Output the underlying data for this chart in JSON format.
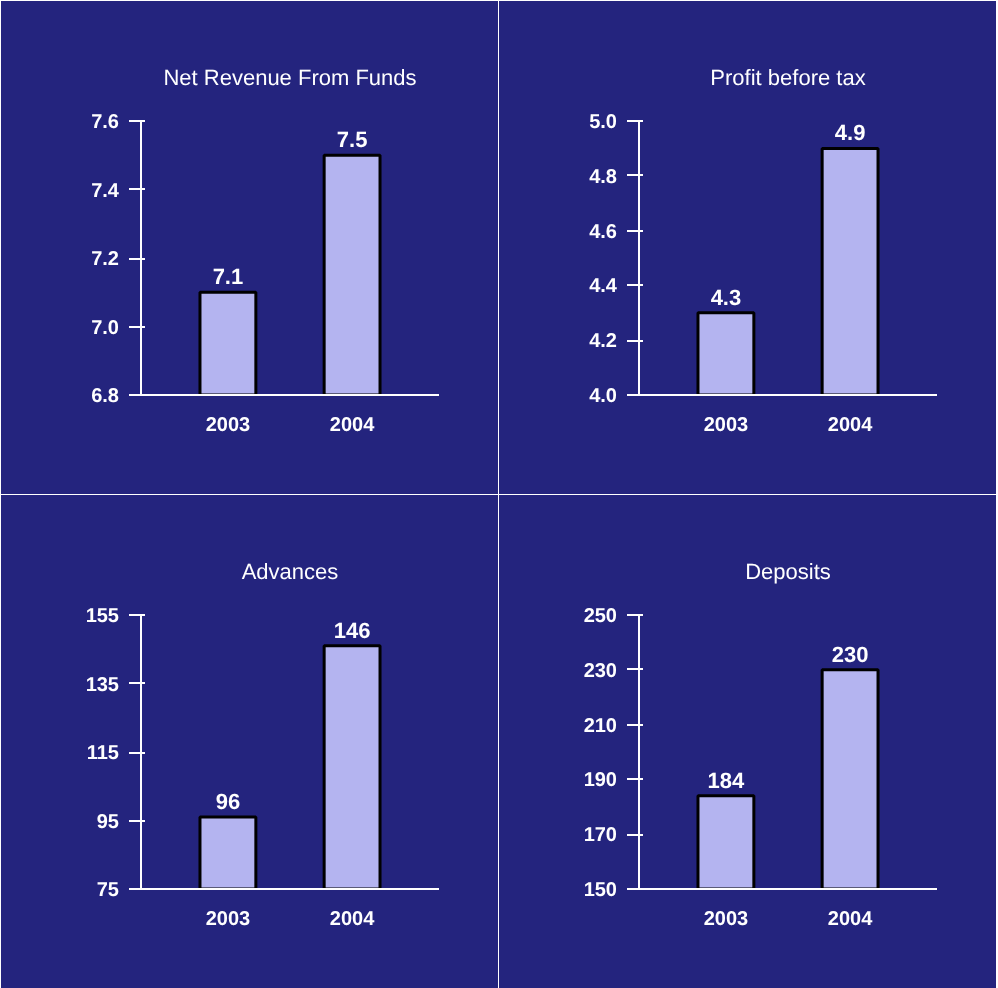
{
  "chart_data": [
    {
      "type": "bar",
      "title": "Net Revenue From Funds",
      "categories": [
        "2003",
        "2004"
      ],
      "values": [
        7.1,
        7.5
      ],
      "color": "#b4b4f0",
      "ylim": [
        6.8,
        7.6
      ],
      "yticks": [
        6.8,
        {
          "value": 7,
          "label": "7.0"
        },
        7.2,
        7.4,
        7.6
      ],
      "data_labels": true
    },
    {
      "type": "bar",
      "title": "Profit before tax",
      "categories": [
        "2003",
        "2004"
      ],
      "values": [
        4.3,
        4.9
      ],
      "color": "#b4b4f0",
      "ylim": [
        4.0,
        5.0
      ],
      "yticks": [
        {
          "value": 4,
          "label": "4.0"
        },
        4.2,
        4.4,
        4.6,
        4.8,
        {
          "value": 5,
          "label": "5.0"
        }
      ],
      "data_labels": true
    },
    {
      "type": "bar",
      "title": "Advances",
      "categories": [
        "2003",
        "2004"
      ],
      "values": [
        96,
        146
      ],
      "color": "#b4b4f0",
      "ylim": [
        75,
        155
      ],
      "yticks": [
        75,
        95,
        115,
        135,
        155
      ],
      "data_labels": true
    },
    {
      "type": "bar",
      "title": "Deposits",
      "categories": [
        "2003",
        "2004"
      ],
      "values": [
        184,
        230
      ],
      "color": "#b4b4f0",
      "ylim": [
        150,
        250
      ],
      "yticks": [
        150,
        170,
        190,
        210,
        230,
        250
      ],
      "data_labels": true
    }
  ]
}
